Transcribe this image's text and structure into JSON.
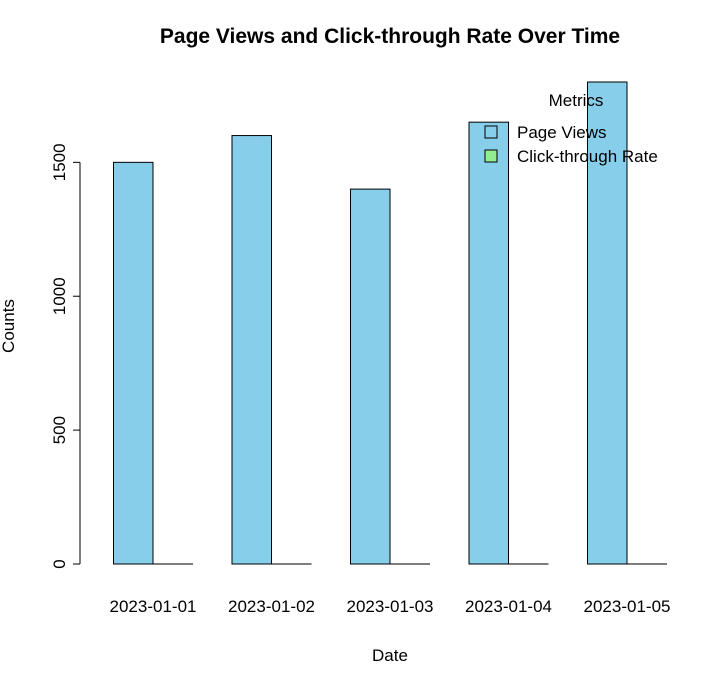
{
  "chart_data": {
    "type": "bar",
    "title": "Page Views and Click-through Rate Over Time",
    "xlabel": "Date",
    "ylabel": "Counts",
    "categories": [
      "2023-01-01",
      "2023-01-02",
      "2023-01-03",
      "2023-01-04",
      "2023-01-05"
    ],
    "series": [
      {
        "name": "Page Views",
        "values": [
          1500,
          1600,
          1400,
          1650,
          1800
        ],
        "color": "#87CEEB"
      },
      {
        "name": "Click-through Rate",
        "values": [
          0.05,
          0.06,
          0.04,
          0.07,
          0.08
        ],
        "color": "#90EE90"
      }
    ],
    "ylim": [
      0,
      1800
    ],
    "yticks": [
      0,
      500,
      1000,
      1500
    ],
    "grid": false,
    "legend": {
      "title": "Metrics",
      "position": "top-right"
    }
  }
}
